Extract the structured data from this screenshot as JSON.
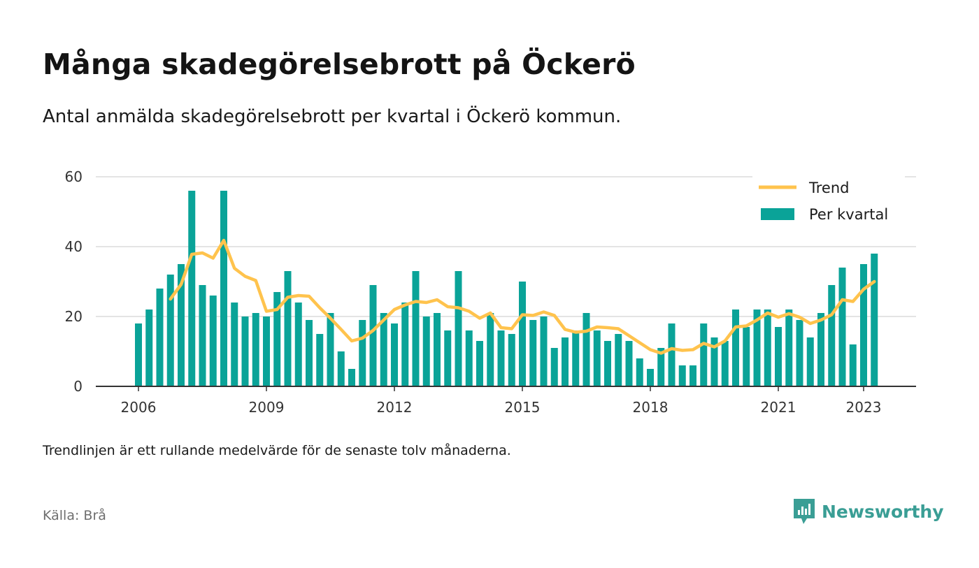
{
  "header": {
    "title": "Många skadegörelsebrott på Öckerö",
    "subtitle": "Antal anmälda skadegörelsebrott per kvartal i Öckerö kommun."
  },
  "footer": {
    "note": "Trendlinjen är ett rullande medelvärde för de senaste tolv månaderna.",
    "source": "Källa: Brå",
    "brand": "Newsworthy"
  },
  "colors": {
    "bar": "#0aa398",
    "trend": "#ffc34d",
    "grid": "#dcdcdc",
    "axis": "#333333",
    "brand": "#3a9e95"
  },
  "chart_data": {
    "type": "bar",
    "x_start": "2006 Q1",
    "ylim": [
      0,
      60
    ],
    "yticks": [
      "0",
      "20",
      "40",
      "60"
    ],
    "xticks": [
      "2006",
      "2009",
      "2012",
      "2015",
      "2018",
      "2021",
      "2023"
    ],
    "grid": true,
    "legend_position": "top-right",
    "series": [
      {
        "name": "Per kvartal",
        "type": "bar",
        "values": [
          18,
          22,
          28,
          32,
          35,
          56,
          29,
          26,
          56,
          24,
          20,
          21,
          20,
          27,
          33,
          24,
          19,
          15,
          21,
          10,
          5,
          19,
          29,
          21,
          18,
          24,
          33,
          20,
          21,
          16,
          33,
          16,
          13,
          21,
          16,
          15,
          30,
          19,
          20,
          11,
          14,
          16,
          21,
          16,
          13,
          15,
          13,
          8,
          5,
          11,
          18,
          6,
          6,
          18,
          14,
          13,
          22,
          17,
          22,
          22,
          17,
          22,
          19,
          14,
          21,
          29,
          34,
          12,
          35,
          38
        ]
      },
      {
        "name": "Trend",
        "type": "line",
        "start_index": 3,
        "values": [
          25,
          29.2,
          37.8,
          38.2,
          36.7,
          41.8,
          33.8,
          31.5,
          30.3,
          21.5,
          22,
          25.5,
          26,
          25.8,
          22.5,
          19.5,
          16.3,
          13,
          13.8,
          16,
          19,
          22,
          23.3,
          24.3,
          24,
          24.8,
          22.8,
          22.5,
          21.5,
          19.5,
          21,
          16.8,
          16.5,
          20.5,
          20.3,
          21.3,
          20.3,
          16.3,
          15.5,
          15.8,
          17,
          16.8,
          16.5,
          14.5,
          12.5,
          10.5,
          9.5,
          10.8,
          10.3,
          10.5,
          12.3,
          11.3,
          13,
          17,
          17.3,
          19,
          21,
          19.8,
          20.8,
          19.8,
          18,
          19,
          20.5,
          24.8,
          24.3,
          27.8,
          30
        ]
      }
    ]
  }
}
